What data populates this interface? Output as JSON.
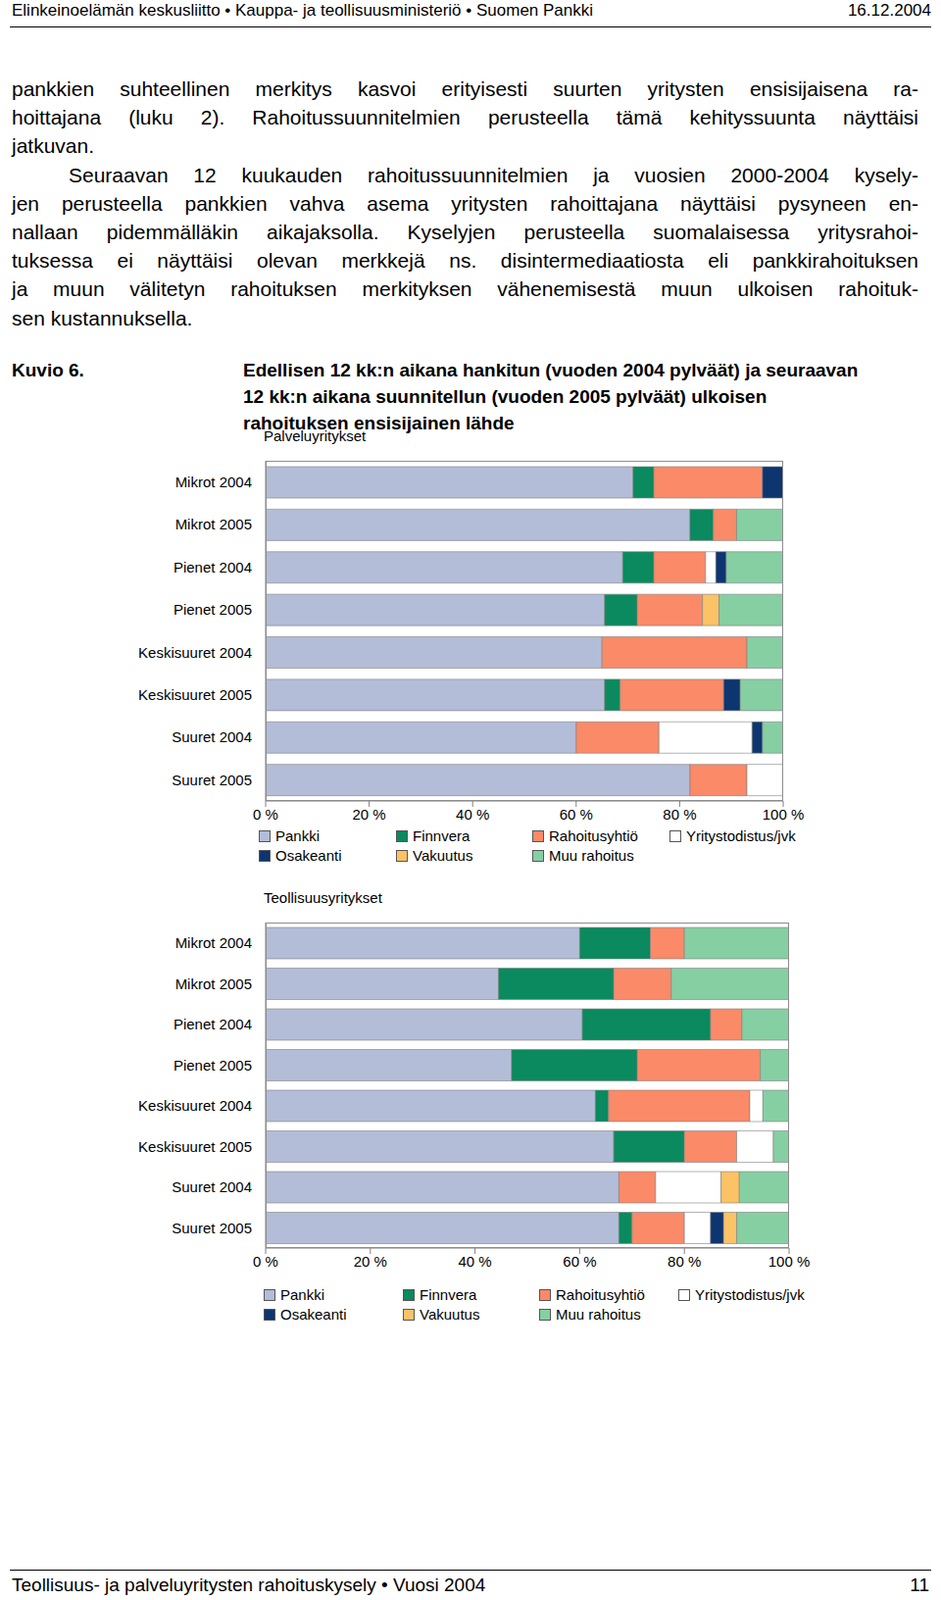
{
  "header": {
    "left": "Elinkeinoelämän keskusliitto • Kauppa- ja teollisuusministeriö • Suomen Pankki",
    "right": "16.12.2004"
  },
  "paragraphs": [
    [
      "pankkien suhteellinen merkitys kasvoi erityisesti suurten yritysten ensisijaisena ra-",
      "hoittajana (luku 2). Rahoitussuunnitelmien perusteella tämä kehityssuunta näyttäisi",
      "jatkuvan."
    ],
    [
      "Seuraavan 12 kuukauden rahoitussuunnitelmien ja vuosien 2000-2004 kysely-",
      "jen perusteella pankkien vahva asema yritysten rahoittajana näyttäisi pysyneen en-",
      "nallaan pidemmälläkin aikajaksolla. Kyselyjen perusteella suomalaisessa yritysrahoi-",
      "tuksessa ei näyttäisi olevan merkkejä ns. disintermediaatiosta eli pankkirahoituksen",
      "ja muun välitetyn rahoituksen merkityksen vähenemisestä muun ulkoisen rahoituk-",
      "sen kustannuksella."
    ]
  ],
  "figure": {
    "label": "Kuvio 6.",
    "title_lines": [
      "Edellisen 12 kk:n aikana hankitun (vuoden 2004 pylväät) ja seuraavan",
      "12 kk:n aikana suunnitellun (vuoden 2005 pylväät) ulkoisen",
      "rahoituksen ensisijainen lähde"
    ]
  },
  "chart_data": [
    {
      "type": "bar",
      "title": "Palveluyritykset",
      "orientation": "horizontal",
      "stacked": true,
      "legend": "bottom",
      "categories": [
        "Mikrot 2004",
        "Mikrot 2005",
        "Pienet 2004",
        "Pienet 2005",
        "Keskisuuret 2004",
        "Keskisuuret 2005",
        "Suuret 2004",
        "Suuret 2005"
      ],
      "xlim": [
        0,
        100
      ],
      "xticks": [
        {
          "value": 0,
          "label": "0 %"
        },
        {
          "value": 20,
          "label": "20 %"
        },
        {
          "value": 40,
          "label": "40 %"
        },
        {
          "value": 60,
          "label": "60 %"
        },
        {
          "value": 80,
          "label": "80 %"
        },
        {
          "value": 100,
          "label": "100 %"
        }
      ],
      "series": [
        {
          "name": "Pankki",
          "color": "#b3bdd8",
          "values": [
            71,
            82,
            69,
            65.5,
            65,
            65.5,
            60,
            82
          ]
        },
        {
          "name": "Finnvera",
          "color": "#0a8a5e",
          "values": [
            4,
            4.5,
            6,
            6.3,
            0,
            3,
            0,
            0
          ]
        },
        {
          "name": "Rahoitusyhtiö",
          "color": "#fa8a68",
          "values": [
            21,
            4.5,
            10,
            12.6,
            28,
            20,
            16,
            11
          ]
        },
        {
          "name": "Yritystodistus/jvk",
          "color": "#ffffff",
          "values": [
            0,
            0,
            2,
            0,
            0,
            0,
            18,
            7
          ]
        },
        {
          "name": "Osakeanti",
          "color": "#0d3570",
          "values": [
            4,
            0,
            2,
            0,
            0,
            3.2,
            2,
            0
          ]
        },
        {
          "name": "Vakuutus",
          "color": "#fbc266",
          "values": [
            0,
            0,
            0,
            3.2,
            0,
            0,
            0,
            0
          ]
        },
        {
          "name": "Muu rahoitus",
          "color": "#86cfa3",
          "values": [
            0,
            9,
            11,
            12.4,
            7,
            8.3,
            4,
            0
          ]
        }
      ]
    },
    {
      "type": "bar",
      "title": "Teollisuusyritykset",
      "orientation": "horizontal",
      "stacked": true,
      "legend": "bottom",
      "categories": [
        "Mikrot 2004",
        "Mikrot 2005",
        "Pienet 2004",
        "Pienet 2005",
        "Keskisuuret 2004",
        "Keskisuuret 2005",
        "Suuret 2004",
        "Suuret 2005"
      ],
      "xlim": [
        0,
        100
      ],
      "xticks": [
        {
          "value": 0,
          "label": "0 %"
        },
        {
          "value": 20,
          "label": "20 %"
        },
        {
          "value": 40,
          "label": "40 %"
        },
        {
          "value": 60,
          "label": "60 %"
        },
        {
          "value": 80,
          "label": "80 %"
        },
        {
          "value": 100,
          "label": "100 %"
        }
      ],
      "series": [
        {
          "name": "Pankki",
          "color": "#b3bdd8",
          "values": [
            60,
            44.5,
            60.5,
            47,
            63,
            66.5,
            67.5,
            67.5
          ]
        },
        {
          "name": "Finnvera",
          "color": "#0a8a5e",
          "values": [
            13.5,
            22,
            24.5,
            24,
            2.5,
            13.5,
            0,
            2.5
          ]
        },
        {
          "name": "Rahoitusyhtiö",
          "color": "#fa8a68",
          "values": [
            6.5,
            11,
            6,
            23.5,
            27,
            10,
            7,
            10
          ]
        },
        {
          "name": "Yritystodistus/jvk",
          "color": "#ffffff",
          "values": [
            0,
            0,
            0,
            0,
            2.5,
            7,
            12.5,
            5
          ]
        },
        {
          "name": "Osakeanti",
          "color": "#0d3570",
          "values": [
            0,
            0,
            0,
            0,
            0,
            0,
            0,
            2.5
          ]
        },
        {
          "name": "Vakuutus",
          "color": "#fbc266",
          "values": [
            0,
            0,
            0,
            0,
            0,
            0,
            3.5,
            2.5
          ]
        },
        {
          "name": "Muu rahoitus",
          "color": "#86cfa3",
          "values": [
            20,
            22.5,
            9,
            5.5,
            5,
            3,
            9.5,
            10
          ]
        }
      ]
    }
  ],
  "footer": {
    "left": "Teollisuus- ja palveluyritysten rahoituskysely • Vuosi 2004",
    "right": "11"
  }
}
